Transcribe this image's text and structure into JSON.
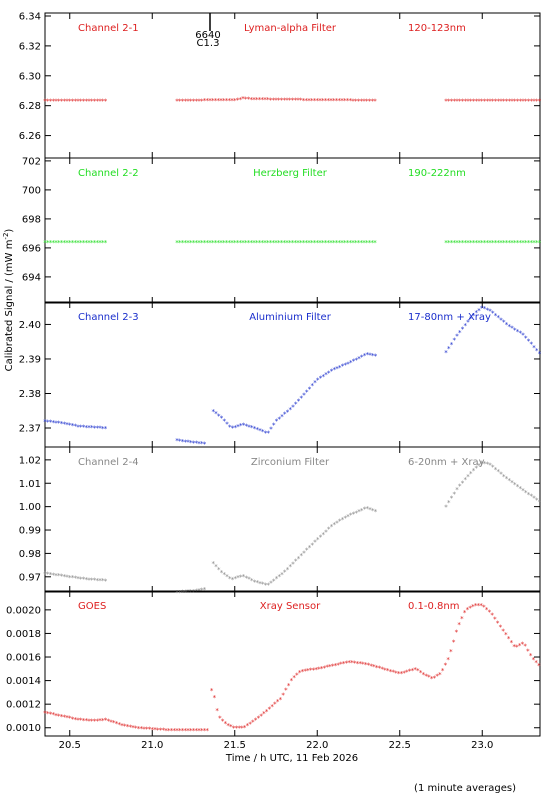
{
  "figure": {
    "ylabel": "Calibrated Signal / (mW m",
    "ylabel_sup": "-2",
    "ylabel_close": ")",
    "xlabel": "Time / h UTC, 11 Feb 2026",
    "footnote": "(1 minute averages)",
    "event_marker": {
      "x": 21.35,
      "label1": "6640",
      "label2": "C1.3"
    }
  },
  "chart_data": [
    {
      "type": "scatter",
      "channel": "Channel 2-1",
      "filter": "Lyman-alpha Filter",
      "band": "120-123nm",
      "color": "#dd2020",
      "xlim": [
        20.35,
        23.35
      ],
      "ylim": [
        6.245,
        6.342
      ],
      "yticks": [
        6.26,
        6.28,
        6.3,
        6.32,
        6.34
      ],
      "yticklabels": [
        "6.26",
        "6.28",
        "6.30",
        "6.32",
        "6.34"
      ],
      "series": [
        {
          "segments": [
            {
              "x": [
                20.35,
                20.72
              ],
              "y": [
                6.2835,
                6.2835
              ]
            },
            {
              "x": [
                21.15,
                21.5,
                21.55,
                21.6,
                22.0,
                22.36
              ],
              "y": [
                6.2835,
                6.2838,
                6.285,
                6.2845,
                6.2838,
                6.2835
              ]
            },
            {
              "x": [
                22.78,
                23.35
              ],
              "y": [
                6.2835,
                6.2835
              ]
            }
          ]
        }
      ]
    },
    {
      "type": "scatter",
      "channel": "Channel 2-2",
      "filter": "Herzberg Filter",
      "band": "190-222nm",
      "color": "#22dd22",
      "xlim": [
        20.35,
        23.35
      ],
      "ylim": [
        692.2,
        702.2
      ],
      "yticks": [
        694,
        696,
        698,
        700,
        702
      ],
      "yticklabels": [
        "694",
        "696",
        "698",
        "700",
        "702"
      ],
      "series": [
        {
          "segments": [
            {
              "x": [
                20.35,
                20.72
              ],
              "y": [
                696.4,
                696.4
              ]
            },
            {
              "x": [
                21.15,
                22.36
              ],
              "y": [
                696.4,
                696.4
              ]
            },
            {
              "x": [
                22.78,
                23.35
              ],
              "y": [
                696.4,
                696.4
              ]
            }
          ]
        }
      ]
    },
    {
      "type": "scatter",
      "channel": "Channel 2-3",
      "filter": "Aluminium Filter",
      "band": "17-80nm + Xray",
      "color": "#1a2ecc",
      "xlim": [
        20.35,
        23.35
      ],
      "ylim": [
        2.3645,
        2.4065
      ],
      "yticks": [
        2.37,
        2.38,
        2.39,
        2.4
      ],
      "yticklabels": [
        "2.37",
        "2.38",
        "2.39",
        "2.40"
      ],
      "series": [
        {
          "segments": [
            {
              "x": [
                20.35,
                20.45,
                20.55,
                20.72
              ],
              "y": [
                2.372,
                2.3715,
                2.3705,
                2.37
              ]
            },
            {
              "x": [
                21.15,
                21.25,
                21.33
              ],
              "y": [
                2.3665,
                2.3658,
                2.3655
              ]
            },
            {
              "x": [
                21.37,
                21.42,
                21.48,
                21.55,
                21.62,
                21.7,
                21.75,
                21.85,
                22.0,
                22.1,
                22.2,
                22.3,
                22.36
              ],
              "y": [
                2.375,
                2.373,
                2.37,
                2.371,
                2.37,
                2.3685,
                2.372,
                2.376,
                2.384,
                2.387,
                2.389,
                2.3915,
                2.391
              ]
            },
            {
              "x": [
                22.78,
                22.85,
                22.95,
                23.0,
                23.05,
                23.15,
                23.25,
                23.35
              ],
              "y": [
                2.392,
                2.397,
                2.403,
                2.405,
                2.404,
                2.4,
                2.397,
                2.3915
              ]
            }
          ]
        }
      ]
    },
    {
      "type": "scatter",
      "channel": "Channel 2-4",
      "filter": "Zirconium Filter",
      "band": "6-20nm + Xray",
      "color": "#888888",
      "xlim": [
        20.35,
        23.35
      ],
      "ylim": [
        0.9635,
        1.0255
      ],
      "yticks": [
        0.97,
        0.98,
        0.99,
        1.0,
        1.01,
        1.02
      ],
      "yticklabels": [
        "0.97",
        "0.98",
        "0.99",
        "1.00",
        "1.01",
        "1.02"
      ],
      "series": [
        {
          "segments": [
            {
              "x": [
                20.35,
                20.45,
                20.6,
                20.72
              ],
              "y": [
                0.9715,
                0.9705,
                0.969,
                0.9685
              ]
            },
            {
              "x": [
                21.15,
                21.25,
                21.33
              ],
              "y": [
                0.9635,
                0.964,
                0.965
              ]
            },
            {
              "x": [
                21.37,
                21.42,
                21.48,
                21.55,
                21.62,
                21.7,
                21.8,
                21.9,
                22.0,
                22.1,
                22.2,
                22.3,
                22.36
              ],
              "y": [
                0.976,
                0.972,
                0.969,
                0.9705,
                0.968,
                0.9665,
                0.972,
                0.979,
                0.986,
                0.9925,
                0.9965,
                0.9995,
                0.998
              ]
            },
            {
              "x": [
                22.78,
                22.85,
                22.95,
                23.0,
                23.05,
                23.15,
                23.25,
                23.35
              ],
              "y": [
                1.0,
                1.008,
                1.016,
                1.019,
                1.018,
                1.012,
                1.007,
                1.002
              ]
            }
          ]
        }
      ]
    },
    {
      "type": "scatter",
      "channel": "GOES",
      "filter": "Xray Sensor",
      "band": "0.1-0.8nm",
      "color": "#dd2020",
      "xlim": [
        20.35,
        23.35
      ],
      "ylim": [
        0.00093,
        0.00216
      ],
      "xticks": [
        20.5,
        21.0,
        21.5,
        22.0,
        22.5,
        23.0
      ],
      "xticklabels": [
        "20.5",
        "21.0",
        "21.5",
        "22.0",
        "22.5",
        "23.0"
      ],
      "yticks": [
        0.001,
        0.0012,
        0.0014,
        0.0016,
        0.0018,
        0.002
      ],
      "yticklabels": [
        "0.0010",
        "0.0012",
        "0.0014",
        "0.0016",
        "0.0018",
        "0.0020"
      ],
      "series": [
        {
          "segments": [
            {
              "x": [
                20.35,
                20.45,
                20.55,
                20.65,
                20.72,
                20.8,
                20.9,
                21.0,
                21.1,
                21.2,
                21.3,
                21.34
              ],
              "y": [
                0.00113,
                0.0011,
                0.00107,
                0.00106,
                0.00107,
                0.00103,
                0.001,
                0.00099,
                0.00098,
                0.00098,
                0.00098,
                0.00098
              ]
            },
            {
              "x": [
                21.36,
                21.38,
                21.4,
                21.45,
                21.5,
                21.55,
                21.6,
                21.7,
                21.78,
                21.85,
                21.9,
                22.0,
                22.1,
                22.2,
                22.3,
                22.4,
                22.5,
                22.55,
                22.6,
                22.65,
                22.7,
                22.75,
                22.8,
                22.85,
                22.9,
                22.95,
                23.0,
                23.05,
                23.1,
                23.15,
                23.2,
                23.25,
                23.3,
                23.35
              ],
              "y": [
                0.00132,
                0.00125,
                0.0011,
                0.00103,
                0.001,
                0.001,
                0.00104,
                0.00115,
                0.00125,
                0.00142,
                0.00148,
                0.0015,
                0.00153,
                0.00156,
                0.00154,
                0.0015,
                0.00146,
                0.00148,
                0.0015,
                0.00145,
                0.00142,
                0.00146,
                0.0016,
                0.00185,
                0.002,
                0.00204,
                0.00204,
                0.00198,
                0.00188,
                0.00178,
                0.00168,
                0.00172,
                0.0016,
                0.00152
              ]
            }
          ]
        }
      ]
    }
  ]
}
